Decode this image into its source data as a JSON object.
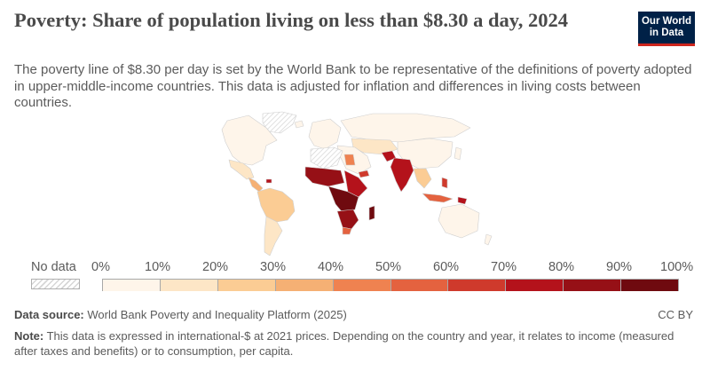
{
  "header": {
    "title": "Poverty: Share of population living on less than $8.30 a day, 2024",
    "subtitle": "The poverty line of $8.30 per day is set by the World Bank to be representative of the definitions of poverty adopted in upper-middle-income countries. This data is adjusted for inflation and differences in living costs between countries."
  },
  "logo": {
    "line1": "Our World",
    "line2": "in Data"
  },
  "legend": {
    "no_data_label": "No data",
    "ticks": [
      "0%",
      "10%",
      "20%",
      "30%",
      "40%",
      "50%",
      "60%",
      "70%",
      "80%",
      "90%",
      "100%"
    ],
    "colors": [
      "#fef5ea",
      "#fde6c6",
      "#fbcc94",
      "#f5b074",
      "#ef8250",
      "#e4623f",
      "#cf3a2c",
      "#b4121b",
      "#961016",
      "#6f0a0f"
    ]
  },
  "footer": {
    "source_label": "Data source:",
    "source_text": "World Bank Poverty and Inequality Platform (2025)",
    "license": "CC BY",
    "note_label": "Note:",
    "note_text": "This data is expressed in international-$ at 2021 prices. Depending on the country and year, it relates to income (measured after taxes and benefits) or to consumption, per capita."
  },
  "colors": {
    "nodata_hatch": "#d6d6d6",
    "border": "#cfcfcf",
    "brand": "#002147",
    "brand_accent": "#ce261e"
  }
}
